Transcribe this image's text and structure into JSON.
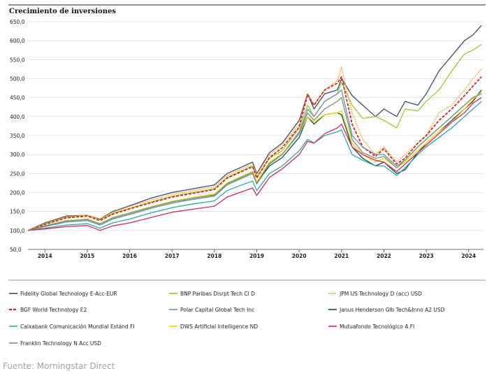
{
  "chart_data": {
    "type": "line",
    "title": "Crecimiento de inversiones",
    "xlabel": "",
    "ylabel": "",
    "ylim": [
      50,
      650
    ],
    "yticks": [
      50,
      100,
      150,
      200,
      250,
      300,
      350,
      400,
      450,
      500,
      550,
      600,
      650
    ],
    "ytick_labels": [
      "50,0",
      "100,0",
      "150,0",
      "200,0",
      "250,0",
      "300,0",
      "350,0",
      "400,0",
      "450,0",
      "500,0",
      "550,0",
      "600,0",
      "650,0"
    ],
    "xlim": [
      2013.6,
      2024.35
    ],
    "xtick_labels": [
      "2014",
      "2015",
      "2016",
      "2017",
      "2018",
      "2019",
      "2020",
      "2021",
      "2022",
      "2023",
      "2024"
    ],
    "xtick_positions": [
      2014.0,
      2015.0,
      2016.0,
      2017.0,
      2018.0,
      2019.0,
      2020.0,
      2021.0,
      2022.0,
      2023.0,
      2024.0
    ],
    "x": [
      2013.6,
      2014.0,
      2014.5,
      2015.0,
      2015.3,
      2015.6,
      2016.0,
      2016.5,
      2017.0,
      2017.5,
      2018.0,
      2018.3,
      2018.6,
      2018.9,
      2019.0,
      2019.3,
      2019.6,
      2020.0,
      2020.2,
      2020.35,
      2020.6,
      2020.9,
      2021.0,
      2021.25,
      2021.5,
      2021.8,
      2022.0,
      2022.3,
      2022.5,
      2022.8,
      2023.0,
      2023.3,
      2023.6,
      2023.9,
      2024.1,
      2024.3
    ],
    "series": [
      {
        "name": "Fidelity Global Technology E-Acc-EUR",
        "color": "#3c4a7a",
        "dash": "solid",
        "values": [
          100,
          120,
          138,
          140,
          130,
          150,
          165,
          185,
          200,
          210,
          220,
          250,
          265,
          280,
          250,
          305,
          330,
          390,
          460,
          420,
          460,
          470,
          500,
          455,
          430,
          400,
          420,
          400,
          440,
          430,
          460,
          520,
          560,
          600,
          615,
          640
        ]
      },
      {
        "name": "BNP Paribas Disrpt Tech Cl D",
        "color": "#9ccc2e",
        "dash": "solid",
        "values": [
          100,
          118,
          135,
          140,
          128,
          145,
          158,
          175,
          190,
          200,
          210,
          240,
          255,
          270,
          240,
          290,
          310,
          370,
          430,
          400,
          440,
          460,
          490,
          430,
          395,
          400,
          390,
          370,
          420,
          415,
          440,
          470,
          520,
          565,
          575,
          590
        ]
      },
      {
        "name": "JPM US Technology D (acc) USD",
        "color": "#f5a623",
        "dash": "dotted",
        "values": [
          100,
          118,
          136,
          140,
          130,
          148,
          163,
          180,
          195,
          205,
          215,
          245,
          260,
          275,
          245,
          300,
          325,
          380,
          460,
          430,
          470,
          495,
          530,
          410,
          340,
          300,
          320,
          280,
          300,
          330,
          350,
          410,
          430,
          470,
          500,
          525
        ]
      },
      {
        "name": "BGF World Technology E2",
        "color": "#e02020",
        "dash": "dashed",
        "values": [
          100,
          116,
          133,
          138,
          126,
          143,
          157,
          173,
          188,
          198,
          208,
          238,
          253,
          268,
          238,
          292,
          318,
          372,
          458,
          430,
          470,
          488,
          505,
          380,
          320,
          295,
          315,
          275,
          290,
          330,
          350,
          390,
          420,
          455,
          480,
          505
        ]
      },
      {
        "name": "Polar Capital Global Tech Inc",
        "color": "#6a8fb5",
        "dash": "solid",
        "values": [
          100,
          110,
          122,
          126,
          114,
          130,
          142,
          158,
          172,
          182,
          190,
          220,
          235,
          250,
          222,
          275,
          300,
          360,
          420,
          400,
          440,
          460,
          470,
          350,
          320,
          300,
          300,
          270,
          285,
          320,
          340,
          370,
          400,
          430,
          450,
          460
        ]
      },
      {
        "name": "Janus Henderson Glb Tech&Inno A2 USD",
        "color": "#0b4f4a",
        "dash": "solid",
        "values": [
          100,
          112,
          125,
          130,
          118,
          134,
          146,
          162,
          176,
          186,
          195,
          225,
          240,
          255,
          226,
          270,
          292,
          345,
          400,
          380,
          405,
          410,
          405,
          320,
          290,
          270,
          280,
          250,
          260,
          305,
          330,
          360,
          390,
          420,
          440,
          470
        ]
      },
      {
        "name": "Caixabank Comunicación Mundial Estánd FI",
        "color": "#2fa89a",
        "dash": "solid",
        "values": [
          100,
          106,
          114,
          118,
          106,
          120,
          130,
          146,
          160,
          170,
          178,
          205,
          218,
          230,
          205,
          250,
          270,
          310,
          340,
          330,
          350,
          360,
          365,
          300,
          285,
          270,
          270,
          245,
          265,
          300,
          320,
          345,
          370,
          400,
          420,
          440
        ]
      },
      {
        "name": "DWS Artificial Intelligence ND",
        "color": "#f5d300",
        "dash": "solid",
        "values": [
          100,
          112,
          126,
          130,
          118,
          134,
          146,
          162,
          177,
          187,
          196,
          225,
          240,
          255,
          228,
          280,
          302,
          355,
          400,
          385,
          405,
          410,
          415,
          330,
          300,
          280,
          290,
          265,
          280,
          310,
          330,
          360,
          385,
          420,
          445,
          465
        ]
      },
      {
        "name": "Mutuafondo Tecnológico A FI",
        "color": "#d6246e",
        "dash": "solid",
        "values": [
          100,
          104,
          110,
          113,
          100,
          112,
          120,
          134,
          148,
          156,
          164,
          188,
          200,
          212,
          192,
          240,
          262,
          300,
          335,
          330,
          355,
          370,
          380,
          320,
          300,
          285,
          280,
          255,
          275,
          305,
          325,
          355,
          385,
          410,
          435,
          450
        ]
      },
      {
        "name": "Franklin Technology N Acc USD",
        "color": "#77956f",
        "dash": "solid",
        "values": [
          100,
          112,
          125,
          129,
          117,
          133,
          145,
          161,
          175,
          185,
          193,
          223,
          238,
          253,
          224,
          277,
          300,
          355,
          410,
          390,
          420,
          440,
          450,
          340,
          305,
          290,
          295,
          265,
          285,
          320,
          340,
          370,
          400,
          430,
          450,
          460
        ]
      }
    ]
  },
  "source_text": "Fuente: Morningstar Direct"
}
